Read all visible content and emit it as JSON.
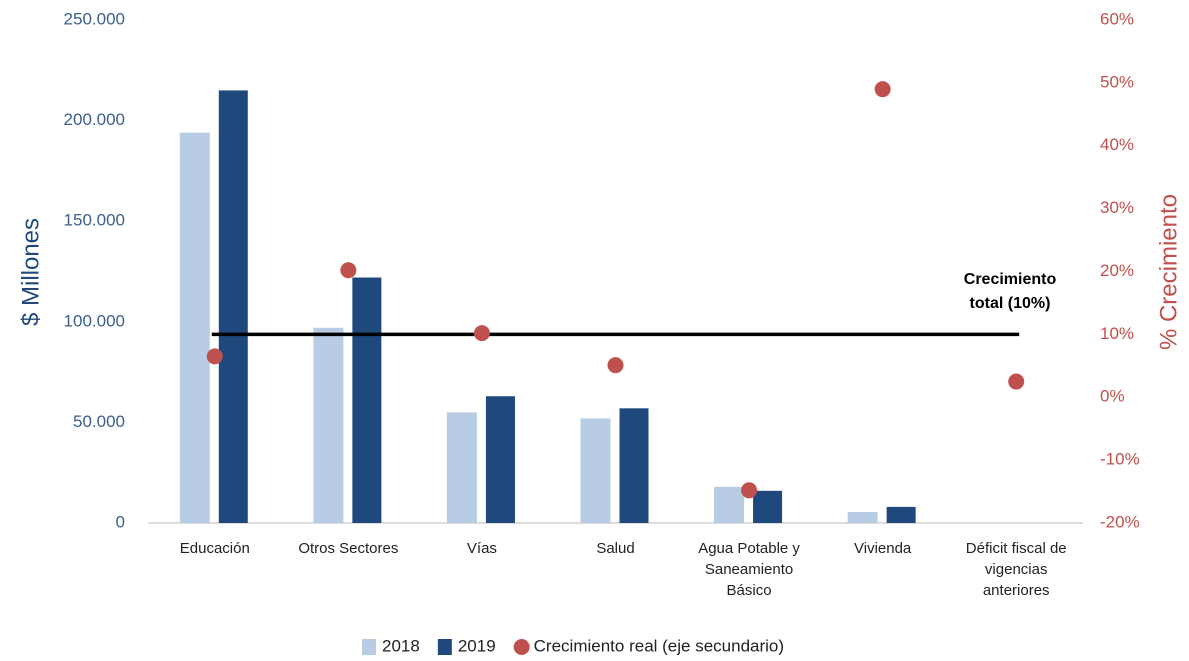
{
  "chart_data": {
    "type": "bar",
    "categories": [
      "Educación",
      "Otros Sectores",
      "Vías",
      "Salud",
      "Agua Potable y Saneamiento Básico",
      "Vivienda",
      "Déficit fiscal de vigencias anteriores"
    ],
    "series": [
      {
        "name": "2018",
        "color": "#b8cce4",
        "values": [
          194000,
          97000,
          55000,
          52000,
          18000,
          5500,
          null
        ]
      },
      {
        "name": "2019",
        "color": "#1f497d",
        "values": [
          215000,
          122000,
          63000,
          57000,
          16000,
          8000,
          null
        ]
      },
      {
        "name": "Crecimiento real (eje secundario)",
        "type": "scatter",
        "axis": "y2",
        "color": "#c0504d",
        "values": [
          6.5,
          20.2,
          10.2,
          5.1,
          -14.8,
          49,
          2.5
        ]
      }
    ],
    "reference_line": {
      "value": 10,
      "axis": "y2",
      "color": "#000000"
    },
    "annotation": "Crecimiento total (10%)",
    "ylabel": "$ Millones",
    "y2label": "% Crecimiento",
    "ylim": [
      0,
      250000
    ],
    "yticks": [
      0,
      {
        "value": 50000,
        "label": "50.000"
      },
      {
        "value": 100000,
        "label": "100.000"
      },
      {
        "value": 150000,
        "label": "150.000"
      },
      {
        "value": 200000,
        "label": "200.000"
      },
      {
        "value": 250000,
        "label": "250.000"
      }
    ],
    "y2lim": [
      -20,
      60
    ],
    "y2ticks": [
      {
        "value": -20,
        "label": "-20%"
      },
      {
        "value": -10,
        "label": "-10%"
      },
      {
        "value": 0,
        "label": "0%"
      },
      {
        "value": 10,
        "label": "10%"
      },
      {
        "value": 20,
        "label": "20%"
      },
      {
        "value": 30,
        "label": "30%"
      },
      {
        "value": 40,
        "label": "40%"
      },
      {
        "value": 50,
        "label": "50%"
      },
      {
        "value": 60,
        "label": "60%"
      }
    ],
    "legend": "bottom"
  }
}
